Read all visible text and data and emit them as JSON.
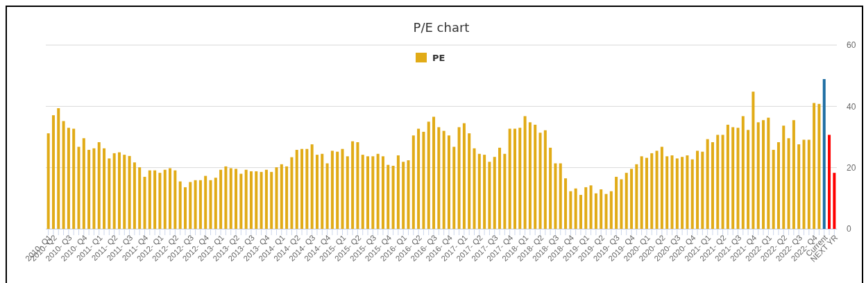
{
  "chart_data": {
    "type": "bar",
    "title": "P/E chart",
    "categories": [
      "2010- Q1",
      "2010- Q2",
      null,
      null,
      "2010- Q3",
      null,
      null,
      "2010- Q4",
      null,
      null,
      "2011- Q1",
      null,
      null,
      "2011- Q2",
      null,
      null,
      "2011- Q3",
      null,
      null,
      "2011- Q4",
      null,
      null,
      "2012- Q1",
      null,
      null,
      "2012- Q2",
      null,
      null,
      "2012- Q3",
      null,
      null,
      "2012- Q4",
      null,
      null,
      "2013- Q1",
      null,
      null,
      "2013- Q2",
      null,
      null,
      "2013- Q3",
      null,
      null,
      "2013- Q4",
      null,
      null,
      "2014- Q1",
      null,
      null,
      "2014- Q2",
      null,
      null,
      "2014- Q3",
      null,
      null,
      "2014- Q4",
      null,
      null,
      "2015- Q1",
      null,
      null,
      "2015- Q2",
      null,
      null,
      "2015- Q3",
      null,
      null,
      "2015- Q4",
      null,
      null,
      "2016- Q1",
      null,
      null,
      "2016- Q2",
      null,
      null,
      "2016- Q3",
      null,
      null,
      "2016- Q4",
      null,
      null,
      "2017- Q1",
      null,
      null,
      "2017- Q2",
      null,
      null,
      "2017- Q3",
      null,
      null,
      "2017- Q4",
      null,
      null,
      "2018- Q1",
      null,
      null,
      "2018- Q2",
      null,
      null,
      "2018- Q3",
      null,
      null,
      "2018- Q4",
      null,
      null,
      "2019- Q1",
      null,
      null,
      "2019- Q2",
      null,
      null,
      "2019- Q3",
      null,
      null,
      "2019- Q4",
      null,
      null,
      "2020- Q1",
      null,
      null,
      "2020- Q2",
      null,
      null,
      "2020- Q3",
      null,
      null,
      "2020- Q4",
      null,
      null,
      "2021- Q1",
      null,
      null,
      "2021- Q2",
      null,
      null,
      "2021- Q3",
      null,
      null,
      "2021- Q4",
      null,
      null,
      "2022- Q1",
      null,
      null,
      "2022- Q2",
      null,
      null,
      "2022- Q3",
      null,
      null,
      "2022- Q4",
      null,
      "Current",
      null,
      "NEXT YR"
    ],
    "series": [
      {
        "name": "PE",
        "color": "#e1ab17",
        "values": [
          31.2,
          37.1,
          39.4,
          35.2,
          33.0,
          32.7,
          26.8,
          29.6,
          25.8,
          26.3,
          28.3,
          26.3,
          23.0,
          24.7,
          25.0,
          24.2,
          23.8,
          21.7,
          20.1,
          17.0,
          19.1,
          19.1,
          18.3,
          19.3,
          19.8,
          19.1,
          15.5,
          13.6,
          15.3,
          15.9,
          15.9,
          17.3,
          15.9,
          16.7,
          19.3,
          20.4,
          19.8,
          19.6,
          18.0,
          19.3,
          18.8,
          18.8,
          18.6,
          19.3,
          18.6,
          20.1,
          21.1,
          20.4,
          23.4,
          25.8,
          26.1,
          26.1,
          27.6,
          24.2,
          24.5,
          21.4,
          25.5,
          25.2,
          26.1,
          23.7,
          28.6,
          28.3,
          24.2,
          23.7,
          23.7,
          24.5,
          23.7,
          20.9,
          20.6,
          24.0,
          21.9,
          22.4,
          30.5,
          32.7,
          31.7,
          35.0,
          36.6,
          33.2,
          32.0,
          30.5,
          26.8,
          33.2,
          34.5,
          31.2,
          26.3,
          24.5,
          24.2,
          21.9,
          23.5,
          26.5,
          24.5,
          32.7,
          32.7,
          33.0,
          36.8,
          34.8,
          34.0,
          31.4,
          32.2,
          26.5,
          21.4,
          21.4,
          16.5,
          12.3,
          13.2,
          11.1,
          13.6,
          14.2,
          11.6,
          12.9,
          11.4,
          12.3,
          17.0,
          16.2,
          18.3,
          19.6,
          21.1,
          23.7,
          23.2,
          24.7,
          25.5,
          26.8,
          23.7,
          24.0,
          23.0,
          23.5,
          24.0,
          22.7,
          25.5,
          25.2,
          29.3,
          28.3,
          30.7,
          30.7,
          34.0,
          33.2,
          33.0,
          36.8,
          32.3,
          44.8,
          34.8,
          35.5,
          36.3,
          25.8,
          28.3,
          33.7,
          29.6,
          35.5,
          27.6,
          29.1,
          29.1,
          41.1,
          40.8,
          48.9,
          30.7,
          18.3
        ],
        "colors": [
          "#e1ab17",
          "#e1ab17",
          "#e1ab17",
          "#e1ab17",
          "#e1ab17",
          "#e1ab17",
          "#e1ab17",
          "#e1ab17",
          "#e1ab17",
          "#e1ab17",
          "#e1ab17",
          "#e1ab17",
          "#e1ab17",
          "#e1ab17",
          "#e1ab17",
          "#e1ab17",
          "#e1ab17",
          "#e1ab17",
          "#e1ab17",
          "#e1ab17",
          "#e1ab17",
          "#e1ab17",
          "#e1ab17",
          "#e1ab17",
          "#e1ab17",
          "#e1ab17",
          "#e1ab17",
          "#e1ab17",
          "#e1ab17",
          "#e1ab17",
          "#e1ab17",
          "#e1ab17",
          "#e1ab17",
          "#e1ab17",
          "#e1ab17",
          "#e1ab17",
          "#e1ab17",
          "#e1ab17",
          "#e1ab17",
          "#e1ab17",
          "#e1ab17",
          "#e1ab17",
          "#e1ab17",
          "#e1ab17",
          "#e1ab17",
          "#e1ab17",
          "#e1ab17",
          "#e1ab17",
          "#e1ab17",
          "#e1ab17",
          "#e1ab17",
          "#e1ab17",
          "#e1ab17",
          "#e1ab17",
          "#e1ab17",
          "#e1ab17",
          "#e1ab17",
          "#e1ab17",
          "#e1ab17",
          "#e1ab17",
          "#e1ab17",
          "#e1ab17",
          "#e1ab17",
          "#e1ab17",
          "#e1ab17",
          "#e1ab17",
          "#e1ab17",
          "#e1ab17",
          "#e1ab17",
          "#e1ab17",
          "#e1ab17",
          "#e1ab17",
          "#e1ab17",
          "#e1ab17",
          "#e1ab17",
          "#e1ab17",
          "#e1ab17",
          "#e1ab17",
          "#e1ab17",
          "#e1ab17",
          "#e1ab17",
          "#e1ab17",
          "#e1ab17",
          "#e1ab17",
          "#e1ab17",
          "#e1ab17",
          "#e1ab17",
          "#e1ab17",
          "#e1ab17",
          "#e1ab17",
          "#e1ab17",
          "#e1ab17",
          "#e1ab17",
          "#e1ab17",
          "#e1ab17",
          "#e1ab17",
          "#e1ab17",
          "#e1ab17",
          "#e1ab17",
          "#e1ab17",
          "#e1ab17",
          "#e1ab17",
          "#e1ab17",
          "#e1ab17",
          "#e1ab17",
          "#e1ab17",
          "#e1ab17",
          "#e1ab17",
          "#e1ab17",
          "#e1ab17",
          "#e1ab17",
          "#e1ab17",
          "#e1ab17",
          "#e1ab17",
          "#e1ab17",
          "#e1ab17",
          "#e1ab17",
          "#e1ab17",
          "#e1ab17",
          "#e1ab17",
          "#e1ab17",
          "#e1ab17",
          "#e1ab17",
          "#e1ab17",
          "#e1ab17",
          "#e1ab17",
          "#e1ab17",
          "#e1ab17",
          "#e1ab17",
          "#e1ab17",
          "#e1ab17",
          "#e1ab17",
          "#e1ab17",
          "#e1ab17",
          "#e1ab17",
          "#e1ab17",
          "#e1ab17",
          "#e1ab17",
          "#e1ab17",
          "#e1ab17",
          "#e1ab17",
          "#e1ab17",
          "#e1ab17",
          "#e1ab17",
          "#e1ab17",
          "#e1ab17",
          "#e1ab17",
          "#e1ab17",
          "#e1ab17",
          "#e1ab17",
          "#e1ab17",
          "#e1ab17",
          "#e1ab17",
          "#1f6fa3",
          "#ff0000",
          "#ff0000"
        ]
      }
    ],
    "ylim": [
      0,
      60
    ],
    "yticks": [
      0,
      20,
      40,
      60
    ],
    "grid": "y",
    "legend": "top"
  }
}
